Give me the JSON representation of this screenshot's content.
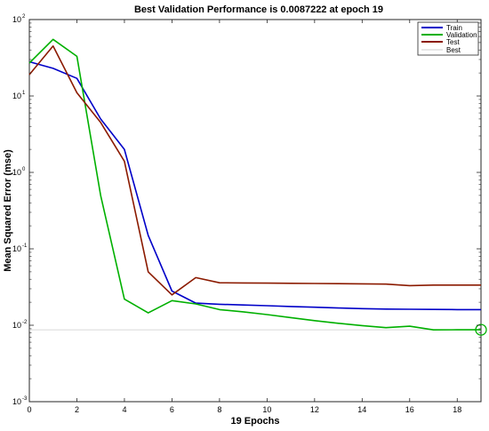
{
  "chart_data": {
    "type": "line",
    "title": "Best Validation Performance is 0.0087222 at epoch 19",
    "xlabel": "19 Epochs",
    "ylabel": "Mean Squared Error  (mse)",
    "yscale": "log",
    "xlim": [
      0,
      19
    ],
    "ylim": [
      0.001,
      100
    ],
    "x_ticks": [
      "0",
      "2",
      "4",
      "6",
      "8",
      "10",
      "12",
      "14",
      "16",
      "18"
    ],
    "y_ticks": [
      {
        "base": "10",
        "exp": "-3",
        "value": 0.001
      },
      {
        "base": "10",
        "exp": "-2",
        "value": 0.01
      },
      {
        "base": "10",
        "exp": "-1",
        "value": 0.1
      },
      {
        "base": "10",
        "exp": "0",
        "value": 1
      },
      {
        "base": "10",
        "exp": "1",
        "value": 10
      },
      {
        "base": "10",
        "exp": "2",
        "value": 100
      }
    ],
    "x": [
      0,
      1,
      2,
      3,
      4,
      5,
      6,
      7,
      8,
      9,
      10,
      11,
      12,
      13,
      14,
      15,
      16,
      17,
      18,
      19
    ],
    "series": [
      {
        "name": "Train",
        "color": "#0000c8",
        "values": [
          28,
          23,
          17,
          5,
          2,
          0.15,
          0.028,
          0.0195,
          0.0188,
          0.0184,
          0.018,
          0.0176,
          0.0172,
          0.0168,
          0.0165,
          0.0163,
          0.0162,
          0.0161,
          0.016,
          0.016
        ]
      },
      {
        "name": "Validation",
        "color": "#00b000",
        "values": [
          27,
          55,
          33,
          0.5,
          0.022,
          0.0145,
          0.021,
          0.019,
          0.016,
          0.015,
          0.0138,
          0.0126,
          0.0115,
          0.0106,
          0.0099,
          0.0093,
          0.0097,
          0.0087,
          0.0087222,
          0.0087222
        ]
      },
      {
        "name": "Test",
        "color": "#8b1a00",
        "values": [
          19,
          45,
          11,
          4.5,
          1.4,
          0.05,
          0.025,
          0.042,
          0.036,
          0.0358,
          0.0356,
          0.0354,
          0.0352,
          0.035,
          0.0348,
          0.0345,
          0.033,
          0.0335,
          0.0335,
          0.0335
        ]
      }
    ],
    "best": {
      "name": "Best",
      "x": 19,
      "y": 0.0087222,
      "color": "#00b000"
    },
    "goal": {
      "y": 0.0087222,
      "color": "#cccccc"
    },
    "legend": {
      "placement": "top-right",
      "entries": [
        "Train",
        "Validation",
        "Test",
        "Best"
      ]
    },
    "grid": false
  }
}
